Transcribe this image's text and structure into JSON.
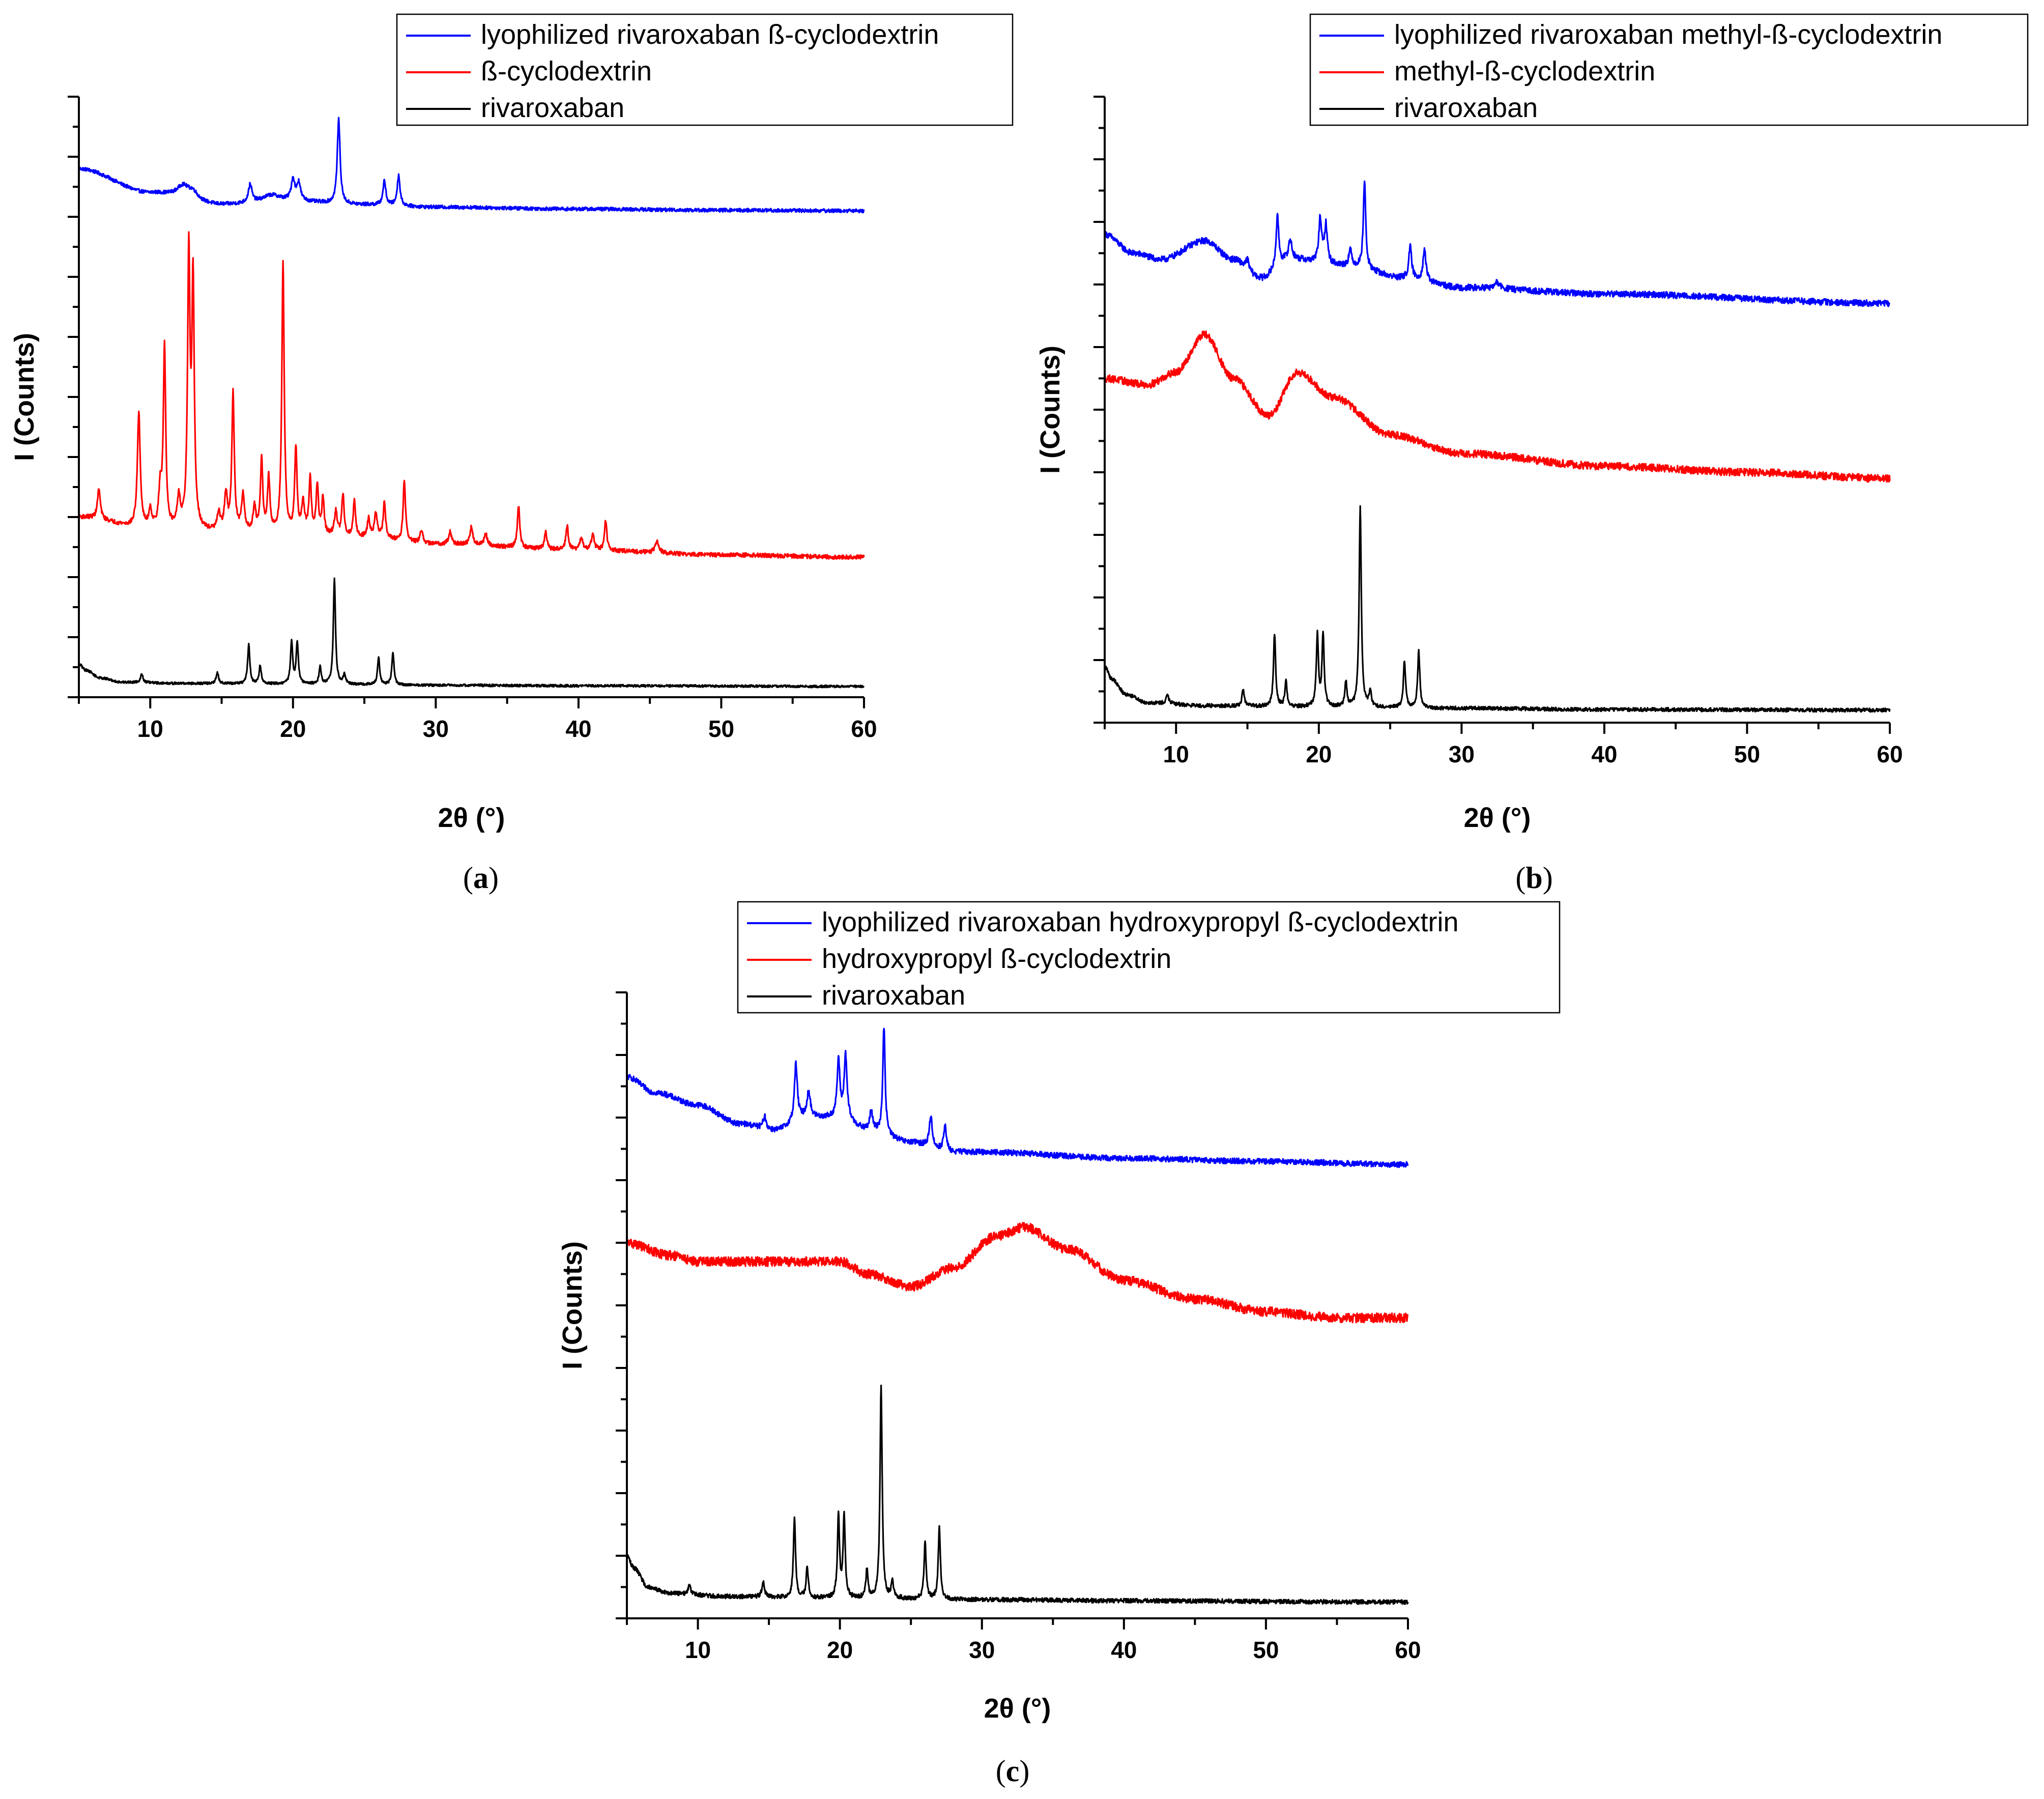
{
  "chart_data": [
    {
      "panel": "a",
      "caption_letter": "a",
      "type": "line",
      "xlabel": "2θ (°)",
      "ylabel": "I (Counts)",
      "xlim": [
        5,
        60
      ],
      "xticks": [
        "10",
        "20",
        "30",
        "40",
        "50",
        "60"
      ],
      "ylim": [
        0,
        100
      ],
      "legend_position": "top-right",
      "series": [
        {
          "name": "lyophilized rivaroxaban ß-cyclodextrin",
          "color": "#0000ff",
          "baseline": {
            "x": [
              5,
              10,
              15,
              20,
              25,
              30,
              40,
              50,
              60
            ],
            "y": [
              88,
              84,
              82,
              82.5,
              82,
              81.6,
              81.3,
              81.1,
              81
            ]
          },
          "peaks": [
            {
              "x": 12.3,
              "h": 2.0,
              "w": 0.5
            },
            {
              "x": 13.0,
              "h": 1.3,
              "w": 0.4
            },
            {
              "x": 17.0,
              "h": 3.0,
              "w": 0.15
            },
            {
              "x": 18.5,
              "h": 1.2,
              "w": 0.8
            },
            {
              "x": 20.0,
              "h": 3.5,
              "w": 0.15
            },
            {
              "x": 20.4,
              "h": 3.0,
              "w": 0.15
            },
            {
              "x": 23.2,
              "h": 14.0,
              "w": 0.12
            },
            {
              "x": 26.4,
              "h": 4.0,
              "w": 0.12
            },
            {
              "x": 27.4,
              "h": 5.0,
              "w": 0.12
            }
          ],
          "noise": 0.3
        },
        {
          "name": "ß-cyclodextrin",
          "color": "#ff0000",
          "baseline": {
            "x": [
              5,
              10,
              15,
              20,
              25,
              30,
              40,
              50,
              60
            ],
            "y": [
              30,
              28,
              27.5,
              27,
              26.5,
              25.5,
              24.5,
              23.7,
              23.3
            ]
          },
          "peaks": [
            {
              "x": 6.4,
              "h": 5,
              "w": 0.12
            },
            {
              "x": 9.2,
              "h": 19,
              "w": 0.12
            },
            {
              "x": 10.0,
              "h": 3,
              "w": 0.12
            },
            {
              "x": 10.7,
              "h": 6,
              "w": 0.12
            },
            {
              "x": 11.0,
              "h": 30,
              "w": 0.1
            },
            {
              "x": 12.0,
              "h": 5,
              "w": 0.12
            },
            {
              "x": 12.7,
              "h": 45,
              "w": 0.1
            },
            {
              "x": 13.0,
              "h": 41,
              "w": 0.1
            },
            {
              "x": 14.8,
              "h": 3,
              "w": 0.12
            },
            {
              "x": 15.3,
              "h": 6,
              "w": 0.12
            },
            {
              "x": 15.8,
              "h": 23,
              "w": 0.1
            },
            {
              "x": 16.5,
              "h": 6,
              "w": 0.12
            },
            {
              "x": 17.3,
              "h": 4,
              "w": 0.12
            },
            {
              "x": 17.8,
              "h": 12,
              "w": 0.1
            },
            {
              "x": 18.3,
              "h": 9,
              "w": 0.1
            },
            {
              "x": 19.3,
              "h": 45,
              "w": 0.1
            },
            {
              "x": 20.2,
              "h": 14,
              "w": 0.1
            },
            {
              "x": 20.7,
              "h": 5,
              "w": 0.12
            },
            {
              "x": 21.2,
              "h": 9,
              "w": 0.1
            },
            {
              "x": 21.7,
              "h": 8,
              "w": 0.1
            },
            {
              "x": 22.1,
              "h": 6,
              "w": 0.1
            },
            {
              "x": 23.0,
              "h": 4,
              "w": 0.12
            },
            {
              "x": 23.5,
              "h": 7,
              "w": 0.1
            },
            {
              "x": 24.3,
              "h": 6,
              "w": 0.1
            },
            {
              "x": 25.3,
              "h": 3,
              "w": 0.12
            },
            {
              "x": 25.8,
              "h": 4,
              "w": 0.12
            },
            {
              "x": 26.4,
              "h": 6,
              "w": 0.1
            },
            {
              "x": 27.8,
              "h": 10,
              "w": 0.1
            },
            {
              "x": 29.0,
              "h": 2,
              "w": 0.12
            },
            {
              "x": 31.0,
              "h": 2,
              "w": 0.12
            },
            {
              "x": 32.5,
              "h": 3,
              "w": 0.12
            },
            {
              "x": 33.5,
              "h": 2,
              "w": 0.12
            },
            {
              "x": 35.8,
              "h": 7,
              "w": 0.1
            },
            {
              "x": 37.7,
              "h": 3,
              "w": 0.1
            },
            {
              "x": 39.2,
              "h": 4,
              "w": 0.1
            },
            {
              "x": 40.2,
              "h": 2,
              "w": 0.12
            },
            {
              "x": 41.0,
              "h": 2.5,
              "w": 0.12
            },
            {
              "x": 41.9,
              "h": 5,
              "w": 0.1
            },
            {
              "x": 45.5,
              "h": 2,
              "w": 0.15
            }
          ],
          "noise": 0.35
        },
        {
          "name": "rivaroxaban",
          "color": "#000000",
          "baseline": {
            "x": [
              5,
              5.5,
              6.5,
              8,
              12,
              20,
              30,
              40,
              60
            ],
            "y": [
              5.5,
              4.5,
              3.2,
              2.5,
              2.3,
              2.2,
              2.0,
              1.9,
              1.8
            ]
          },
          "peaks": [
            {
              "x": 9.4,
              "h": 1.5,
              "w": 0.1
            },
            {
              "x": 14.7,
              "h": 1.8,
              "w": 0.1
            },
            {
              "x": 16.9,
              "h": 6.5,
              "w": 0.09
            },
            {
              "x": 17.7,
              "h": 3.0,
              "w": 0.09
            },
            {
              "x": 19.9,
              "h": 7.0,
              "w": 0.09
            },
            {
              "x": 20.3,
              "h": 7.0,
              "w": 0.09
            },
            {
              "x": 21.9,
              "h": 2.8,
              "w": 0.09
            },
            {
              "x": 22.9,
              "h": 17.5,
              "w": 0.09
            },
            {
              "x": 23.6,
              "h": 1.5,
              "w": 0.1
            },
            {
              "x": 26.0,
              "h": 4.5,
              "w": 0.09
            },
            {
              "x": 27.0,
              "h": 5.5,
              "w": 0.09
            }
          ],
          "noise": 0.2
        }
      ]
    },
    {
      "panel": "b",
      "caption_letter": "b",
      "type": "line",
      "xlabel": "2θ (°)",
      "ylabel": "I (Counts)",
      "xlim": [
        5,
        60
      ],
      "xticks": [
        "10",
        "20",
        "30",
        "40",
        "50",
        "60"
      ],
      "ylim": [
        0,
        100
      ],
      "legend_position": "top-right",
      "series": [
        {
          "name": "lyophilized rivaroxaban methyl-ß-cyclodextrin",
          "color": "#0000ff",
          "baseline": {
            "x": [
              5,
              7,
              9,
              12,
              14,
              16,
              18,
              22,
              26,
              30,
              40,
              60
            ],
            "y": [
              78,
              75,
              74,
              77,
              74,
              71,
              74,
              73,
              71,
              69.5,
              68.5,
              67
            ]
          },
          "peaks": [
            {
              "x": 15.0,
              "h": 1.5,
              "w": 0.12
            },
            {
              "x": 17.1,
              "h": 8,
              "w": 0.12
            },
            {
              "x": 18.0,
              "h": 3,
              "w": 0.15
            },
            {
              "x": 20.1,
              "h": 7,
              "w": 0.12
            },
            {
              "x": 20.5,
              "h": 6,
              "w": 0.12
            },
            {
              "x": 22.2,
              "h": 2.5,
              "w": 0.12
            },
            {
              "x": 23.2,
              "h": 14,
              "w": 0.1
            },
            {
              "x": 26.4,
              "h": 5,
              "w": 0.12
            },
            {
              "x": 27.4,
              "h": 5,
              "w": 0.12
            },
            {
              "x": 32.5,
              "h": 1,
              "w": 0.2
            }
          ],
          "noise": 0.5
        },
        {
          "name": "methyl-ß-cyclodextrin",
          "color": "#ff0000",
          "baseline": {
            "x": [
              5,
              8,
              10,
              12,
              14,
              16.5,
              18.5,
              21,
              25,
              30,
              40,
              50,
              60
            ],
            "y": [
              55,
              54,
              56,
              62,
              55,
              49,
              56,
              52,
              46,
              43,
              41,
              40,
              39
            ]
          },
          "peaks": [],
          "noise": 0.6
        },
        {
          "name": "rivaroxaban",
          "color": "#000000",
          "baseline": {
            "x": [
              5,
              5.5,
              6.5,
              8,
              12,
              20,
              30,
              40,
              60
            ],
            "y": [
              9,
              7,
              4.5,
              3.2,
              2.7,
              2.5,
              2.3,
              2.1,
              2.0
            ]
          },
          "peaks": [
            {
              "x": 9.4,
              "h": 1.5,
              "w": 0.1
            },
            {
              "x": 14.7,
              "h": 2.5,
              "w": 0.1
            },
            {
              "x": 16.9,
              "h": 11.5,
              "w": 0.09
            },
            {
              "x": 17.7,
              "h": 4,
              "w": 0.09
            },
            {
              "x": 19.9,
              "h": 11.5,
              "w": 0.09
            },
            {
              "x": 20.3,
              "h": 11.5,
              "w": 0.09
            },
            {
              "x": 21.9,
              "h": 4,
              "w": 0.09
            },
            {
              "x": 22.9,
              "h": 32,
              "w": 0.09
            },
            {
              "x": 23.6,
              "h": 2.5,
              "w": 0.1
            },
            {
              "x": 26.0,
              "h": 7.5,
              "w": 0.09
            },
            {
              "x": 27.0,
              "h": 9,
              "w": 0.09
            }
          ],
          "noise": 0.3
        }
      ]
    },
    {
      "panel": "c",
      "caption_letter": "c",
      "type": "line",
      "xlabel": "2θ (°)",
      "ylabel": "I (Counts)",
      "xlim": [
        5,
        60
      ],
      "xticks": [
        "10",
        "20",
        "30",
        "40",
        "50",
        "60"
      ],
      "ylim": [
        0,
        100
      ],
      "legend_position": "top-right",
      "series": [
        {
          "name": "lyophilized rivaroxaban hydroxypropyl ß-cyclodextrin",
          "color": "#0000ff",
          "baseline": {
            "x": [
              5,
              7,
              10,
              13,
              15.5,
              17.5,
              20,
              22,
              25,
              28,
              30,
              40,
              50,
              60
            ],
            "y": [
              86.5,
              84,
              82,
              79,
              78,
              80,
              80,
              78,
              76,
              74.5,
              74.5,
              73.5,
              73,
              72.5
            ]
          },
          "peaks": [
            {
              "x": 14.7,
              "h": 2,
              "w": 0.12
            },
            {
              "x": 16.9,
              "h": 9,
              "w": 0.12
            },
            {
              "x": 17.8,
              "h": 4,
              "w": 0.15
            },
            {
              "x": 19.9,
              "h": 9,
              "w": 0.12
            },
            {
              "x": 20.4,
              "h": 10,
              "w": 0.12
            },
            {
              "x": 22.2,
              "h": 3,
              "w": 0.12
            },
            {
              "x": 23.1,
              "h": 17,
              "w": 0.1
            },
            {
              "x": 26.4,
              "h": 5,
              "w": 0.12
            },
            {
              "x": 27.4,
              "h": 4,
              "w": 0.12
            }
          ],
          "noise": 0.45
        },
        {
          "name": "hydroxypropyl ß-cyclodextrin",
          "color": "#ff0000",
          "baseline": {
            "x": [
              5,
              8,
              10,
              15,
              20,
              22,
              25,
              28,
              31,
              33,
              36,
              40,
              45,
              50,
              55,
              60
            ],
            "y": [
              60,
              58,
              57,
              57,
              57,
              55,
              53,
              56,
              61,
              62.5,
              59,
              54,
              51,
              49,
              48,
              48
            ]
          },
          "peaks": [],
          "noise": 0.75
        },
        {
          "name": "rivaroxaban",
          "color": "#000000",
          "baseline": {
            "x": [
              5,
              5.5,
              6.5,
              8,
              12,
              20,
              30,
              40,
              60
            ],
            "y": [
              10,
              8,
              5,
              4,
              3.5,
              3.2,
              3,
              2.8,
              2.6
            ]
          },
          "peaks": [
            {
              "x": 9.4,
              "h": 1.5,
              "w": 0.1
            },
            {
              "x": 14.6,
              "h": 2.5,
              "w": 0.1
            },
            {
              "x": 16.8,
              "h": 12.5,
              "w": 0.09
            },
            {
              "x": 17.7,
              "h": 5,
              "w": 0.09
            },
            {
              "x": 19.9,
              "h": 13,
              "w": 0.09
            },
            {
              "x": 20.3,
              "h": 13,
              "w": 0.09
            },
            {
              "x": 21.9,
              "h": 4.5,
              "w": 0.09
            },
            {
              "x": 22.9,
              "h": 34,
              "w": 0.09
            },
            {
              "x": 23.7,
              "h": 2.5,
              "w": 0.1
            },
            {
              "x": 26.0,
              "h": 9,
              "w": 0.09
            },
            {
              "x": 27.0,
              "h": 11.5,
              "w": 0.09
            }
          ],
          "noise": 0.35
        }
      ]
    }
  ]
}
